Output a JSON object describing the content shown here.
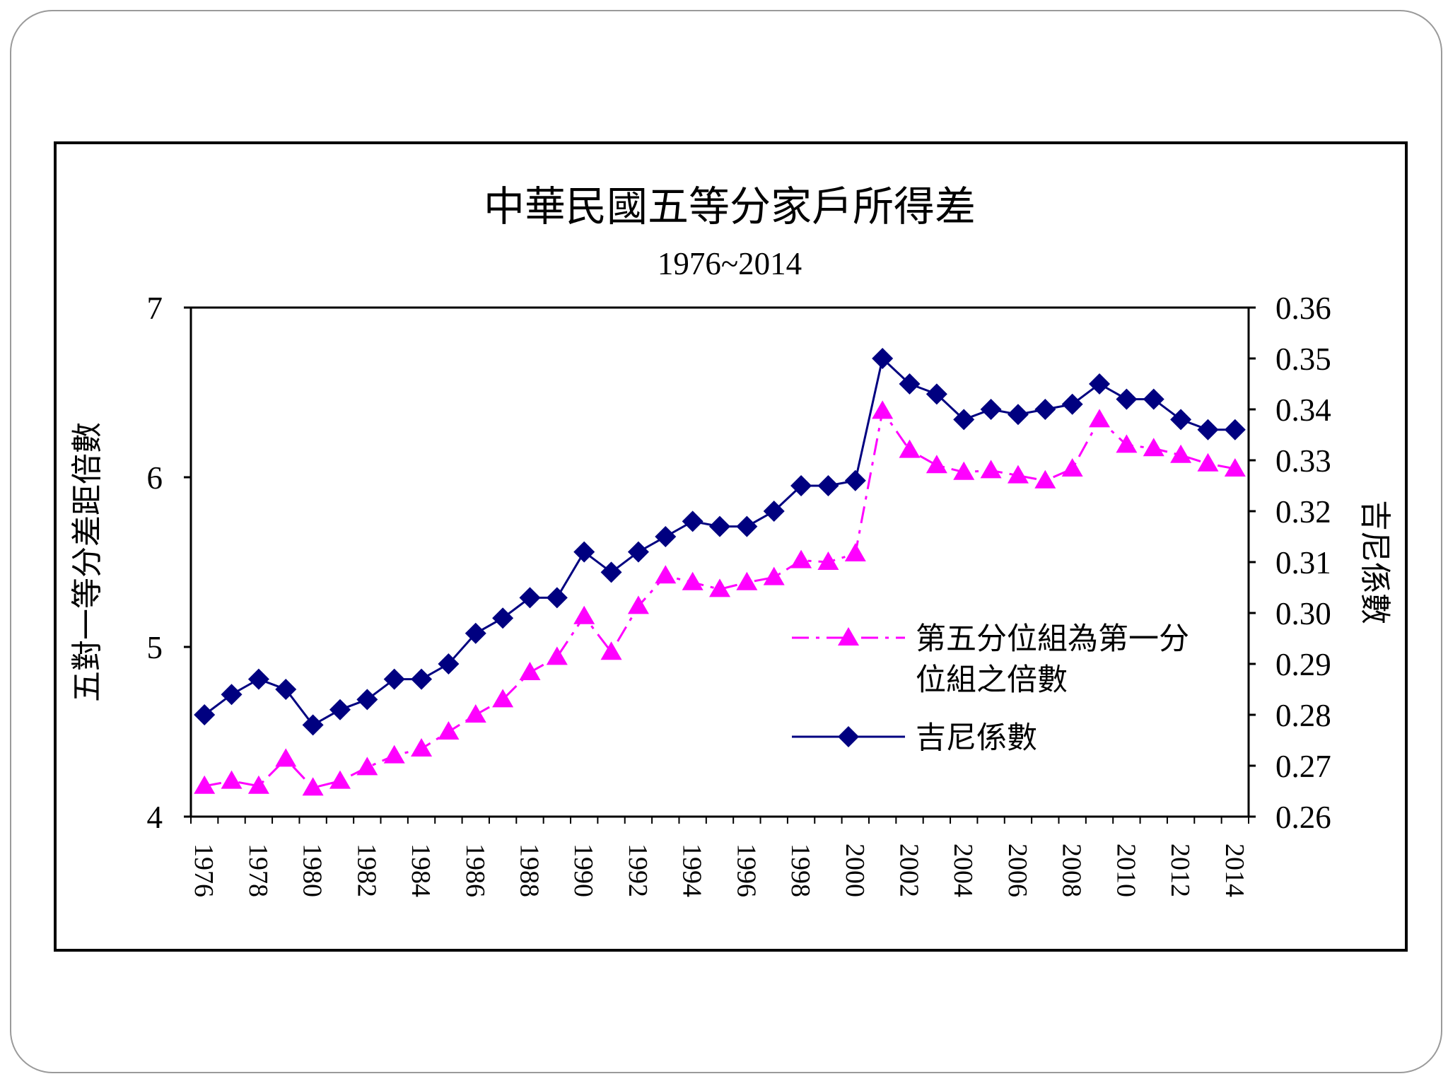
{
  "chart_data": {
    "type": "line",
    "title": "中華民國五等分家戶所得差",
    "subtitle": "1976~2014",
    "ylabel_left": "五對一等分差距倍數",
    "ylabel_right": "吉尼係數",
    "ylim_left": [
      4,
      7
    ],
    "ylim_right": [
      0.26,
      0.36
    ],
    "yticks_left": [
      "4",
      "5",
      "6",
      "7"
    ],
    "yticks_right": [
      "0.26",
      "0.27",
      "0.28",
      "0.29",
      "0.30",
      "0.31",
      "0.32",
      "0.33",
      "0.34",
      "0.35",
      "0.36"
    ],
    "x": [
      1976,
      1977,
      1978,
      1979,
      1980,
      1981,
      1982,
      1983,
      1984,
      1985,
      1986,
      1987,
      1988,
      1989,
      1990,
      1991,
      1992,
      1993,
      1994,
      1995,
      1996,
      1997,
      1998,
      1999,
      2000,
      2001,
      2002,
      2003,
      2004,
      2005,
      2006,
      2007,
      2008,
      2009,
      2010,
      2011,
      2012,
      2013,
      2014
    ],
    "xticks": [
      "1976",
      "1978",
      "1980",
      "1982",
      "1984",
      "1986",
      "1988",
      "1990",
      "1992",
      "1994",
      "1996",
      "1998",
      "2000",
      "2002",
      "2004",
      "2006",
      "2008",
      "2010",
      "2012",
      "2014"
    ],
    "grid": false,
    "legend_position": "lower-right",
    "series": [
      {
        "name": "第五分位組為第一分位組之倍數",
        "axis": "left",
        "color": "#ff00ff",
        "marker": "triangle",
        "line_style": "dash-dot",
        "values": [
          4.18,
          4.21,
          4.18,
          4.34,
          4.17,
          4.21,
          4.29,
          4.36,
          4.4,
          4.5,
          4.6,
          4.69,
          4.85,
          4.94,
          5.18,
          4.97,
          5.24,
          5.42,
          5.38,
          5.34,
          5.38,
          5.41,
          5.51,
          5.5,
          5.55,
          6.39,
          6.16,
          6.07,
          6.03,
          6.04,
          6.01,
          5.98,
          6.05,
          6.34,
          6.19,
          6.17,
          6.13,
          6.08,
          6.05
        ]
      },
      {
        "name": "吉尼係數",
        "axis": "right",
        "color": "#000080",
        "marker": "diamond",
        "line_style": "solid",
        "values": [
          0.28,
          0.284,
          0.287,
          0.285,
          0.278,
          0.281,
          0.283,
          0.287,
          0.287,
          0.29,
          0.296,
          0.299,
          0.303,
          0.303,
          0.312,
          0.308,
          0.312,
          0.315,
          0.318,
          0.317,
          0.317,
          0.32,
          0.325,
          0.325,
          0.326,
          0.35,
          0.345,
          0.343,
          0.338,
          0.34,
          0.339,
          0.34,
          0.341,
          0.345,
          0.342,
          0.342,
          0.338,
          0.336,
          0.336
        ]
      }
    ],
    "legend": {
      "series1_line1": "第五分位組為第一分",
      "series1_line2": "位組之倍數",
      "series2": "吉尼係數"
    }
  }
}
